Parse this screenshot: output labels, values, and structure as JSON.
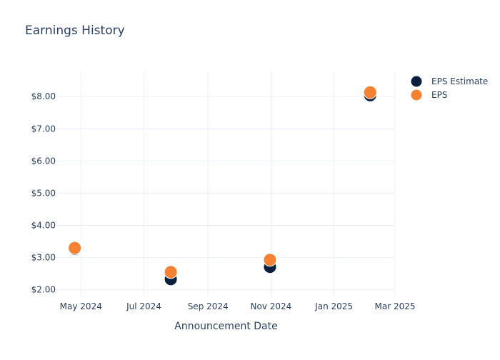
{
  "chart_data": {
    "type": "scatter",
    "title": "Earnings History",
    "xlabel": "Announcement Date",
    "ylabel": "",
    "x_ticks": [
      "May 2024",
      "Jul 2024",
      "Sep 2024",
      "Nov 2024",
      "Jan 2025",
      "Mar 2025"
    ],
    "y_ticks": [
      "$2.00",
      "$3.00",
      "$4.00",
      "$5.00",
      "$6.00",
      "$7.00",
      "$8.00"
    ],
    "ylim": [
      1.75,
      8.78
    ],
    "xlim": [
      "2024-04-08",
      "2025-03-01"
    ],
    "grid": true,
    "legend_position": "top-right",
    "series": [
      {
        "name": "EPS Estimate",
        "color": "#0b1f3f",
        "points": [
          {
            "x": "2024-04-25",
            "y": 3.27
          },
          {
            "x": "2024-07-27",
            "y": 2.33
          },
          {
            "x": "2024-10-31",
            "y": 2.71
          },
          {
            "x": "2025-02-05",
            "y": 8.04
          }
        ]
      },
      {
        "name": "EPS",
        "color": "#f58233",
        "points": [
          {
            "x": "2024-04-25",
            "y": 3.3
          },
          {
            "x": "2024-07-27",
            "y": 2.55
          },
          {
            "x": "2024-10-31",
            "y": 2.93
          },
          {
            "x": "2025-02-05",
            "y": 8.13
          }
        ]
      }
    ]
  }
}
